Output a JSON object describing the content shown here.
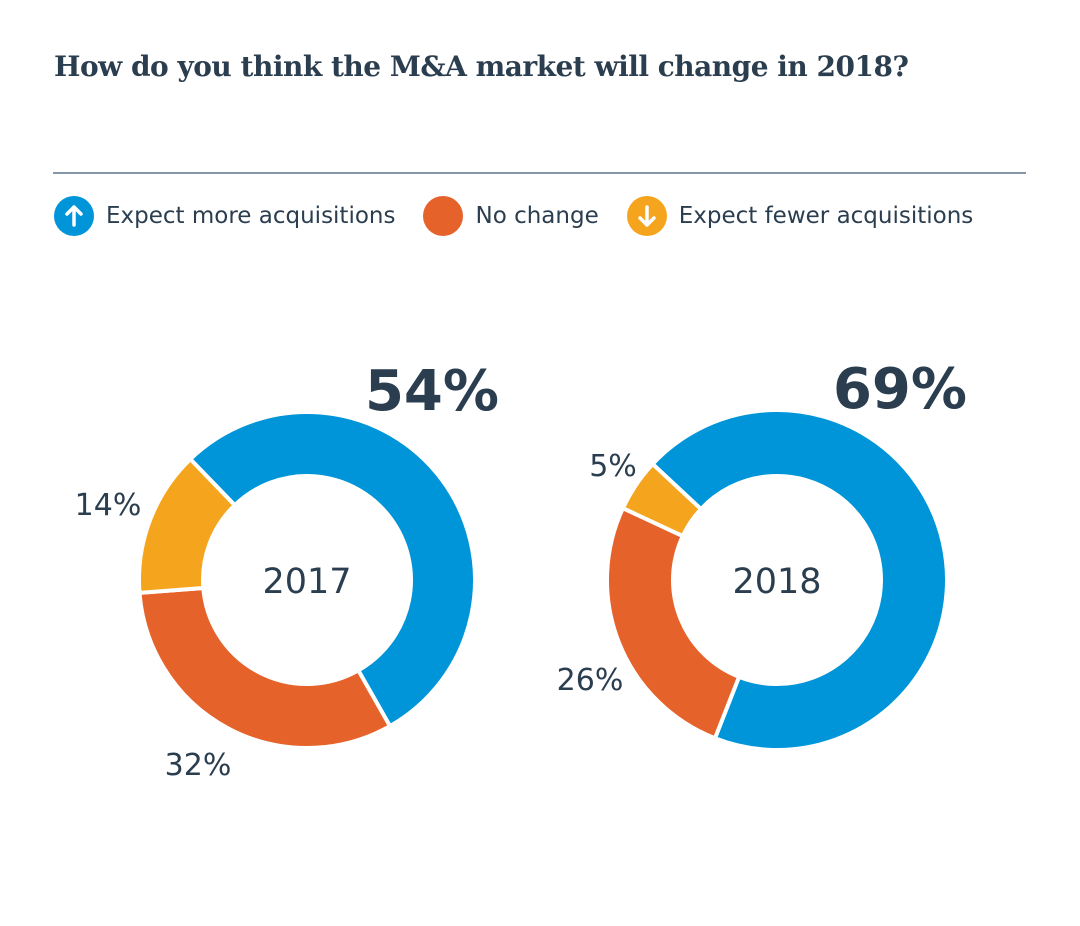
{
  "title": "How do you think the M&A market will change in 2018?",
  "legend": [
    {
      "label": "Expect more acquisitions",
      "color": "#0095d9",
      "icon": "arrow-up-icon"
    },
    {
      "label": "No change",
      "color": "#e5622a",
      "icon": "none"
    },
    {
      "label": "Expect fewer acquisitions",
      "color": "#f5a41e",
      "icon": "arrow-down-icon"
    }
  ],
  "chart_data": [
    {
      "type": "pie",
      "variant": "donut",
      "center_label": "2017",
      "categories": [
        "Expect more acquisitions",
        "No change",
        "Expect fewer acquisitions"
      ],
      "values": [
        54,
        32,
        14
      ],
      "labels": [
        "54%",
        "32%",
        "14%"
      ],
      "colors": [
        "#0095d9",
        "#e5622a",
        "#f5a41e"
      ]
    },
    {
      "type": "pie",
      "variant": "donut",
      "center_label": "2018",
      "categories": [
        "Expect more acquisitions",
        "No change",
        "Expect fewer acquisitions"
      ],
      "values": [
        69,
        26,
        5
      ],
      "labels": [
        "69%",
        "26%",
        "5%"
      ],
      "colors": [
        "#0095d9",
        "#e5622a",
        "#f5a41e"
      ]
    }
  ]
}
